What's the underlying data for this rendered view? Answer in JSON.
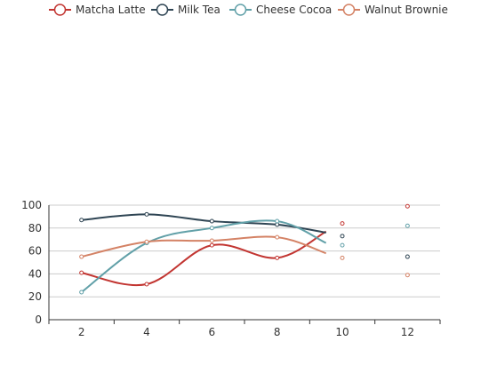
{
  "chart_data": {
    "type": "line",
    "smooth": true,
    "x": [
      2,
      4,
      6,
      8,
      10,
      12
    ],
    "xlim": [
      1,
      13
    ],
    "ylim": [
      0,
      100
    ],
    "xticks": [
      "2",
      "4",
      "6",
      "8",
      "10",
      "12"
    ],
    "yticks": [
      "0",
      "20",
      "40",
      "60",
      "80",
      "100"
    ],
    "grid": "horizontal",
    "legend_position": "top",
    "series": [
      {
        "name": "Matcha Latte",
        "color": "#c23531",
        "line_points": [
          [
            2,
            41
          ],
          [
            4,
            31
          ],
          [
            6,
            65
          ],
          [
            8,
            54
          ],
          [
            9.5,
            77
          ]
        ],
        "markers": [
          [
            2,
            41
          ],
          [
            4,
            31
          ],
          [
            6,
            65
          ],
          [
            8,
            54
          ],
          [
            10,
            84
          ],
          [
            12,
            99
          ]
        ]
      },
      {
        "name": "Milk Tea",
        "color": "#2f4554",
        "line_points": [
          [
            2,
            87
          ],
          [
            4,
            92
          ],
          [
            6,
            86
          ],
          [
            8,
            83
          ],
          [
            9.5,
            76
          ]
        ],
        "markers": [
          [
            2,
            87
          ],
          [
            4,
            92
          ],
          [
            6,
            86
          ],
          [
            8,
            83
          ],
          [
            10,
            73
          ],
          [
            12,
            55
          ]
        ]
      },
      {
        "name": "Cheese Cocoa",
        "color": "#61a0a8",
        "line_points": [
          [
            2,
            24
          ],
          [
            4,
            67
          ],
          [
            6,
            80
          ],
          [
            8,
            86
          ],
          [
            9.5,
            67
          ]
        ],
        "markers": [
          [
            2,
            24
          ],
          [
            4,
            67
          ],
          [
            6,
            80
          ],
          [
            8,
            86
          ],
          [
            10,
            65
          ],
          [
            12,
            82
          ]
        ]
      },
      {
        "name": "Walnut Brownie",
        "color": "#d48265",
        "line_points": [
          [
            2,
            55
          ],
          [
            4,
            68
          ],
          [
            6,
            69
          ],
          [
            8,
            72
          ],
          [
            9.5,
            58
          ]
        ],
        "markers": [
          [
            2,
            55
          ],
          [
            4,
            68
          ],
          [
            6,
            69
          ],
          [
            8,
            72
          ],
          [
            10,
            54
          ],
          [
            12,
            39
          ]
        ]
      }
    ]
  }
}
